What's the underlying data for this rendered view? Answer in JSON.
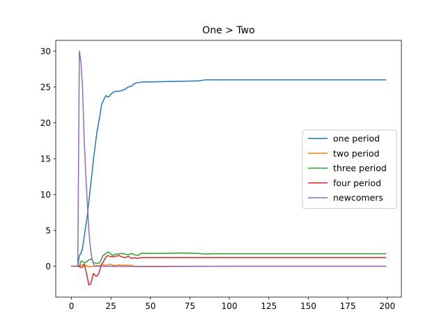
{
  "chart_data": {
    "type": "line",
    "title": "One > Two",
    "xlabel": "",
    "ylabel": "",
    "xlim": [
      -9.95,
      208.95
    ],
    "ylim": [
      -4.3,
      31.5
    ],
    "xticks": [
      0,
      25,
      50,
      75,
      100,
      125,
      150,
      175,
      200
    ],
    "yticks": [
      0,
      5,
      10,
      15,
      20,
      25,
      30
    ],
    "grid": false,
    "legend_position": "center-right",
    "series": [
      {
        "name": "one period",
        "color": "#1f77b4",
        "points": [
          [
            0,
            0
          ],
          [
            4,
            0
          ],
          [
            5,
            1.5
          ],
          [
            6,
            1.8
          ],
          [
            7,
            2.5
          ],
          [
            8,
            4
          ],
          [
            10,
            7
          ],
          [
            12,
            11
          ],
          [
            14,
            15
          ],
          [
            16,
            18.5
          ],
          [
            18,
            21
          ],
          [
            19,
            22.5
          ],
          [
            20,
            23
          ],
          [
            21,
            23.5
          ],
          [
            22,
            23.8
          ],
          [
            23,
            23.6
          ],
          [
            24,
            23.7
          ],
          [
            25,
            24
          ],
          [
            26,
            24.2
          ],
          [
            28,
            24.4
          ],
          [
            30,
            24.4
          ],
          [
            32,
            24.5
          ],
          [
            34,
            24.7
          ],
          [
            36,
            25
          ],
          [
            38,
            25.1
          ],
          [
            40,
            25.5
          ],
          [
            42,
            25.6
          ],
          [
            45,
            25.7
          ],
          [
            50,
            25.7
          ],
          [
            60,
            25.75
          ],
          [
            70,
            25.8
          ],
          [
            80,
            25.85
          ],
          [
            82,
            25.9
          ],
          [
            85,
            26
          ],
          [
            100,
            26
          ],
          [
            150,
            26
          ],
          [
            199,
            26
          ]
        ]
      },
      {
        "name": "two period",
        "color": "#ff7f0e",
        "points": [
          [
            0,
            0
          ],
          [
            4,
            0
          ],
          [
            5,
            -0.1
          ],
          [
            6,
            0.2
          ],
          [
            7,
            0.1
          ],
          [
            8,
            0.3
          ],
          [
            9,
            0
          ],
          [
            10,
            0.1
          ],
          [
            11,
            -0.1
          ],
          [
            12,
            0
          ],
          [
            14,
            -0.05
          ],
          [
            16,
            0.1
          ],
          [
            18,
            0.1
          ],
          [
            20,
            0.2
          ],
          [
            22,
            0.1
          ],
          [
            24,
            0.3
          ],
          [
            26,
            0.15
          ],
          [
            28,
            0.1
          ],
          [
            30,
            0.2
          ],
          [
            32,
            0.1
          ],
          [
            34,
            0.2
          ],
          [
            36,
            0.1
          ],
          [
            38,
            0.15
          ],
          [
            40,
            -0.05
          ],
          [
            42,
            0
          ],
          [
            50,
            0
          ],
          [
            100,
            0
          ],
          [
            150,
            0
          ],
          [
            199,
            0
          ]
        ]
      },
      {
        "name": "three period",
        "color": "#2ca02c",
        "points": [
          [
            0,
            0
          ],
          [
            4,
            0
          ],
          [
            5,
            0
          ],
          [
            6,
            0.7
          ],
          [
            7,
            0.7
          ],
          [
            8,
            0.5
          ],
          [
            9,
            0.5
          ],
          [
            10,
            0.7
          ],
          [
            11,
            0.9
          ],
          [
            12,
            1
          ],
          [
            13,
            0.9
          ],
          [
            14,
            0.5
          ],
          [
            16,
            0.4
          ],
          [
            18,
            0.5
          ],
          [
            20,
            1.5
          ],
          [
            22,
            1.8
          ],
          [
            23,
            2
          ],
          [
            24,
            1.9
          ],
          [
            26,
            1.5
          ],
          [
            28,
            1.7
          ],
          [
            30,
            1.7
          ],
          [
            32,
            1.8
          ],
          [
            34,
            1.7
          ],
          [
            36,
            1.6
          ],
          [
            38,
            1.8
          ],
          [
            40,
            1.6
          ],
          [
            42,
            1.5
          ],
          [
            44,
            1.8
          ],
          [
            50,
            1.8
          ],
          [
            60,
            1.8
          ],
          [
            70,
            1.85
          ],
          [
            80,
            1.8
          ],
          [
            85,
            1.7
          ],
          [
            90,
            1.75
          ],
          [
            100,
            1.75
          ],
          [
            150,
            1.75
          ],
          [
            199,
            1.75
          ]
        ]
      },
      {
        "name": "four period",
        "color": "#d62728",
        "points": [
          [
            0,
            0
          ],
          [
            4,
            0
          ],
          [
            5,
            0
          ],
          [
            6,
            -0.2
          ],
          [
            7,
            -0.1
          ],
          [
            8,
            0.3
          ],
          [
            9,
            -0.5
          ],
          [
            10,
            -1.5
          ],
          [
            11,
            -2.6
          ],
          [
            12,
            -2.5
          ],
          [
            13,
            -1.8
          ],
          [
            14,
            -1
          ],
          [
            15,
            -1.3
          ],
          [
            16,
            -1.4
          ],
          [
            17,
            -1.1
          ],
          [
            18,
            -0.5
          ],
          [
            19,
            0.3
          ],
          [
            20,
            0.5
          ],
          [
            21,
            1
          ],
          [
            22,
            1.3
          ],
          [
            23,
            1.5
          ],
          [
            24,
            1.4
          ],
          [
            26,
            1.3
          ],
          [
            28,
            1.4
          ],
          [
            30,
            1.5
          ],
          [
            32,
            1.3
          ],
          [
            34,
            1.2
          ],
          [
            36,
            1.4
          ],
          [
            38,
            1.1
          ],
          [
            40,
            1.2
          ],
          [
            42,
            1.1
          ],
          [
            44,
            1.2
          ],
          [
            50,
            1.2
          ],
          [
            60,
            1.2
          ],
          [
            80,
            1.2
          ],
          [
            100,
            1.2
          ],
          [
            150,
            1.2
          ],
          [
            199,
            1.2
          ]
        ]
      },
      {
        "name": "newcomers",
        "color": "#9467bd",
        "points": [
          [
            0,
            0
          ],
          [
            4,
            0
          ],
          [
            5,
            30
          ],
          [
            6,
            28.5
          ],
          [
            7,
            25
          ],
          [
            8,
            18
          ],
          [
            9,
            13
          ],
          [
            10,
            9
          ],
          [
            11,
            5
          ],
          [
            12,
            2.5
          ],
          [
            13,
            1
          ],
          [
            14,
            0.3
          ],
          [
            15,
            0
          ],
          [
            20,
            0
          ],
          [
            50,
            -0.05
          ],
          [
            100,
            0
          ],
          [
            150,
            0
          ],
          [
            199,
            0
          ]
        ]
      }
    ]
  }
}
